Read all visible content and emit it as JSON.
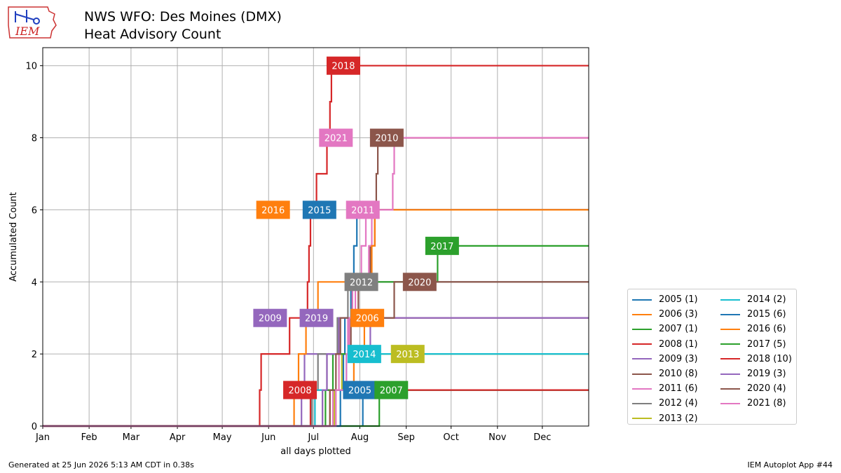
{
  "header": {
    "title_line1": "NWS WFO: Des Moines (DMX)",
    "title_line2": "Heat Advisory Count",
    "logo_text": "IEM"
  },
  "footer": {
    "generated": "Generated at 25 Jun 2026 5:13 AM CDT in 0.38s",
    "app": "IEM Autoplot App #44"
  },
  "colors": {
    "2005": "#1f77b4",
    "2006": "#ff7f0e",
    "2007": "#2ca02c",
    "2008": "#d62728",
    "2009": "#9467bd",
    "2010": "#8c564b",
    "2011": "#e377c2",
    "2012": "#7f7f7f",
    "2013": "#bcbd22",
    "2014": "#17becf",
    "2015": "#1f77b4",
    "2016": "#ff7f0e",
    "2017": "#2ca02c",
    "2018": "#d62728",
    "2019": "#9467bd",
    "2020": "#8c564b",
    "2021": "#e377c2"
  },
  "chart_data": {
    "type": "line",
    "title": "Heat Advisory Count",
    "xlabel": "all days plotted",
    "ylabel": "Accumulated Count",
    "x_units": "day of year",
    "xlim": [
      1,
      366
    ],
    "ylim": [
      0,
      10.5
    ],
    "x_ticks": [
      {
        "label": "Jan",
        "doy": 1
      },
      {
        "label": "Feb",
        "doy": 32
      },
      {
        "label": "Mar",
        "doy": 60
      },
      {
        "label": "Apr",
        "doy": 91
      },
      {
        "label": "May",
        "doy": 121
      },
      {
        "label": "Jun",
        "doy": 152
      },
      {
        "label": "Jul",
        "doy": 182
      },
      {
        "label": "Aug",
        "doy": 213
      },
      {
        "label": "Sep",
        "doy": 244
      },
      {
        "label": "Oct",
        "doy": 274
      },
      {
        "label": "Nov",
        "doy": 305
      },
      {
        "label": "Dec",
        "doy": 335
      }
    ],
    "y_ticks": [
      0,
      2,
      4,
      6,
      8,
      10
    ],
    "grid": true,
    "legend_position": "lower-right outside",
    "series": [
      {
        "name": "2005 (1)",
        "year": "2005",
        "points": [
          [
            1,
            0
          ],
          [
            215,
            0
          ],
          [
            215,
            1
          ],
          [
            366,
            1
          ]
        ],
        "label": {
          "text": "2005",
          "doy": 213,
          "y": 1
        }
      },
      {
        "name": "2006 (3)",
        "year": "2006",
        "points": [
          [
            1,
            0
          ],
          [
            193,
            0
          ],
          [
            193,
            1
          ],
          [
            209,
            1
          ],
          [
            209,
            2
          ],
          [
            216,
            2
          ],
          [
            216,
            3
          ],
          [
            366,
            3
          ]
        ],
        "label": {
          "text": "2006",
          "doy": 218,
          "y": 3
        }
      },
      {
        "name": "2007 (1)",
        "year": "2007",
        "points": [
          [
            1,
            0
          ],
          [
            226,
            0
          ],
          [
            226,
            1
          ],
          [
            366,
            1
          ]
        ],
        "label": {
          "text": "2007",
          "doy": 234,
          "y": 1
        }
      },
      {
        "name": "2008 (1)",
        "year": "2008",
        "points": [
          [
            1,
            0
          ],
          [
            180,
            0
          ],
          [
            180,
            1
          ],
          [
            366,
            1
          ]
        ],
        "label": {
          "text": "2008",
          "doy": 173,
          "y": 1
        }
      },
      {
        "name": "2009 (3)",
        "year": "2009",
        "points": [
          [
            1,
            0
          ],
          [
            174,
            0
          ],
          [
            174,
            1
          ],
          [
            176,
            1
          ],
          [
            176,
            2
          ],
          [
            220,
            2
          ],
          [
            220,
            3
          ],
          [
            366,
            3
          ]
        ],
        "label": {
          "text": "2009",
          "doy": 153,
          "y": 3
        }
      },
      {
        "name": "2010 (8)",
        "year": "2010",
        "points": [
          [
            1,
            0
          ],
          [
            188,
            0
          ],
          [
            188,
            1
          ],
          [
            191,
            1
          ],
          [
            191,
            2
          ],
          [
            207,
            2
          ],
          [
            207,
            3
          ],
          [
            212,
            3
          ],
          [
            212,
            4
          ],
          [
            220,
            4
          ],
          [
            220,
            5
          ],
          [
            223,
            5
          ],
          [
            223,
            6
          ],
          [
            224,
            6
          ],
          [
            224,
            7
          ],
          [
            225,
            7
          ],
          [
            225,
            8
          ],
          [
            366,
            8
          ]
        ],
        "label": {
          "text": "2010",
          "doy": 231,
          "y": 8
        }
      },
      {
        "name": "2011 (6)",
        "year": "2011",
        "points": [
          [
            1,
            0
          ],
          [
            195,
            0
          ],
          [
            195,
            1
          ],
          [
            199,
            1
          ],
          [
            199,
            2
          ],
          [
            205,
            2
          ],
          [
            205,
            3
          ],
          [
            210,
            3
          ],
          [
            210,
            4
          ],
          [
            219,
            4
          ],
          [
            219,
            5
          ],
          [
            221,
            5
          ],
          [
            221,
            6
          ],
          [
            366,
            6
          ]
        ],
        "label": {
          "text": "2011",
          "doy": 215,
          "y": 6
        }
      },
      {
        "name": "2012 (4)",
        "year": "2012",
        "points": [
          [
            1,
            0
          ],
          [
            181,
            0
          ],
          [
            181,
            1
          ],
          [
            185,
            1
          ],
          [
            185,
            2
          ],
          [
            198,
            2
          ],
          [
            198,
            3
          ],
          [
            205,
            3
          ],
          [
            205,
            4
          ],
          [
            366,
            4
          ]
        ],
        "label": {
          "text": "2012",
          "doy": 214,
          "y": 4
        }
      },
      {
        "name": "2013 (2)",
        "year": "2013",
        "points": [
          [
            1,
            0
          ],
          [
            196,
            0
          ],
          [
            196,
            1
          ],
          [
            201,
            1
          ],
          [
            201,
            2
          ],
          [
            366,
            2
          ]
        ],
        "label": {
          "text": "2013",
          "doy": 245,
          "y": 2
        }
      },
      {
        "name": "2014 (2)",
        "year": "2014",
        "points": [
          [
            1,
            0
          ],
          [
            183,
            0
          ],
          [
            183,
            1
          ],
          [
            204,
            1
          ],
          [
            204,
            2
          ],
          [
            366,
            2
          ]
        ],
        "label": {
          "text": "2014",
          "doy": 216,
          "y": 2
        }
      },
      {
        "name": "2015 (6)",
        "year": "2015",
        "points": [
          [
            1,
            0
          ],
          [
            200,
            0
          ],
          [
            200,
            1
          ],
          [
            202,
            1
          ],
          [
            202,
            2
          ],
          [
            203,
            2
          ],
          [
            203,
            3
          ],
          [
            207,
            3
          ],
          [
            207,
            4
          ],
          [
            209,
            4
          ],
          [
            209,
            5
          ],
          [
            211,
            5
          ],
          [
            211,
            6
          ],
          [
            366,
            6
          ]
        ],
        "label": {
          "text": "2015",
          "doy": 186,
          "y": 6
        }
      },
      {
        "name": "2016 (6)",
        "year": "2016",
        "points": [
          [
            1,
            0
          ],
          [
            169,
            0
          ],
          [
            169,
            1
          ],
          [
            172,
            1
          ],
          [
            172,
            2
          ],
          [
            177,
            2
          ],
          [
            177,
            3
          ],
          [
            185,
            3
          ],
          [
            185,
            4
          ],
          [
            221,
            4
          ],
          [
            221,
            5
          ],
          [
            223,
            5
          ],
          [
            223,
            6
          ],
          [
            366,
            6
          ]
        ],
        "label": {
          "text": "2016",
          "doy": 155,
          "y": 6
        }
      },
      {
        "name": "2017 (5)",
        "year": "2017",
        "points": [
          [
            1,
            0
          ],
          [
            190,
            0
          ],
          [
            190,
            1
          ],
          [
            195,
            1
          ],
          [
            195,
            2
          ],
          [
            206,
            2
          ],
          [
            206,
            3
          ],
          [
            208,
            3
          ],
          [
            208,
            4
          ],
          [
            265,
            4
          ],
          [
            265,
            5
          ],
          [
            366,
            5
          ]
        ],
        "label": {
          "text": "2017",
          "doy": 268,
          "y": 5
        }
      },
      {
        "name": "2018 (10)",
        "year": "2018",
        "points": [
          [
            1,
            0
          ],
          [
            146,
            0
          ],
          [
            146,
            1
          ],
          [
            147,
            1
          ],
          [
            147,
            2
          ],
          [
            166,
            2
          ],
          [
            166,
            3
          ],
          [
            178,
            3
          ],
          [
            178,
            4
          ],
          [
            179,
            4
          ],
          [
            179,
            5
          ],
          [
            180,
            5
          ],
          [
            180,
            6
          ],
          [
            184,
            6
          ],
          [
            184,
            7
          ],
          [
            191,
            7
          ],
          [
            191,
            8
          ],
          [
            193,
            8
          ],
          [
            193,
            9
          ],
          [
            194,
            9
          ],
          [
            194,
            10
          ],
          [
            366,
            10
          ]
        ],
        "label": {
          "text": "2018",
          "doy": 202,
          "y": 10
        }
      },
      {
        "name": "2019 (3)",
        "year": "2019",
        "points": [
          [
            1,
            0
          ],
          [
            188,
            0
          ],
          [
            188,
            1
          ],
          [
            191,
            1
          ],
          [
            191,
            2
          ],
          [
            199,
            2
          ],
          [
            199,
            3
          ],
          [
            366,
            3
          ]
        ],
        "label": {
          "text": "2019",
          "doy": 184,
          "y": 3
        }
      },
      {
        "name": "2020 (4)",
        "year": "2020",
        "points": [
          [
            1,
            0
          ],
          [
            193,
            0
          ],
          [
            193,
            1
          ],
          [
            197,
            1
          ],
          [
            197,
            2
          ],
          [
            200,
            2
          ],
          [
            200,
            3
          ],
          [
            236,
            3
          ],
          [
            236,
            4
          ],
          [
            366,
            4
          ]
        ],
        "label": {
          "text": "2020",
          "doy": 253,
          "y": 4
        }
      },
      {
        "name": "2021 (8)",
        "year": "2021",
        "points": [
          [
            1,
            0
          ],
          [
            197,
            0
          ],
          [
            197,
            1
          ],
          [
            204,
            1
          ],
          [
            204,
            2
          ],
          [
            206,
            2
          ],
          [
            206,
            3
          ],
          [
            208,
            3
          ],
          [
            208,
            4
          ],
          [
            214,
            4
          ],
          [
            214,
            5
          ],
          [
            217,
            5
          ],
          [
            217,
            6
          ],
          [
            235,
            6
          ],
          [
            235,
            7
          ],
          [
            236,
            7
          ],
          [
            236,
            8
          ],
          [
            366,
            8
          ]
        ],
        "label": {
          "text": "2021",
          "doy": 197,
          "y": 8
        }
      }
    ]
  },
  "legend": {
    "col1": [
      "2005 (1)",
      "2006 (3)",
      "2007 (1)",
      "2008 (1)",
      "2009 (3)",
      "2010 (8)",
      "2011 (6)",
      "2012 (4)",
      "2013 (2)"
    ],
    "col2": [
      "2014 (2)",
      "2015 (6)",
      "2016 (6)",
      "2017 (5)",
      "2018 (10)",
      "2019 (3)",
      "2020 (4)",
      "2021 (8)"
    ]
  }
}
